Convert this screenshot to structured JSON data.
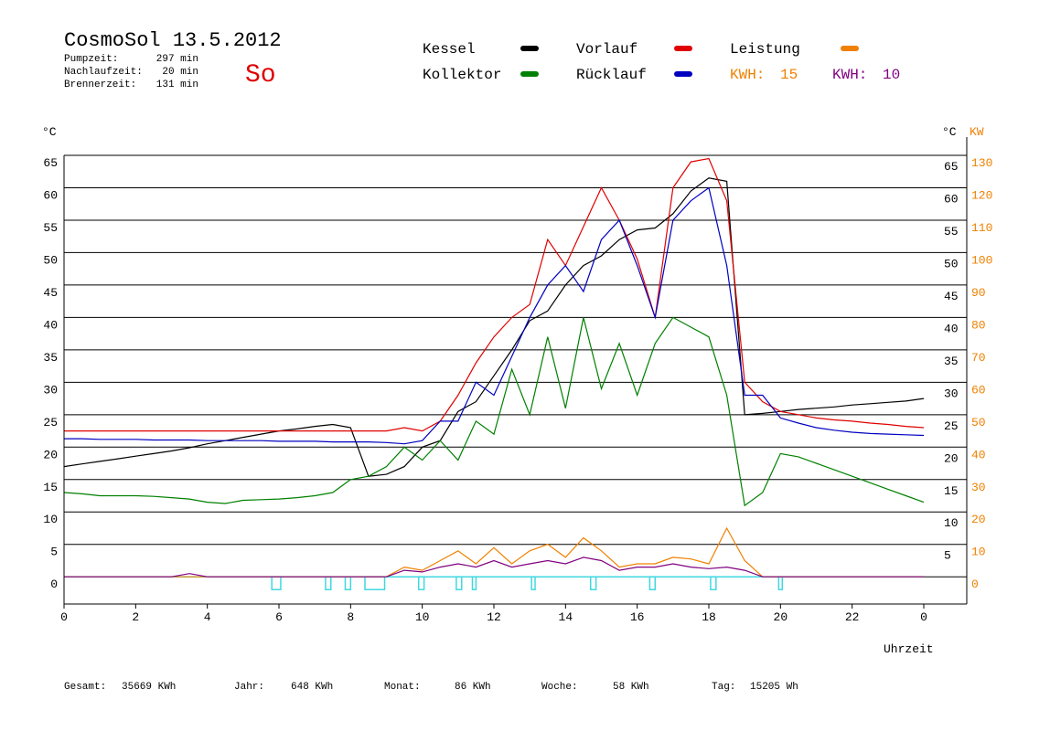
{
  "chart_data": {
    "type": "line",
    "title": "CosmoSol 13.5.2012",
    "day": "So",
    "stats": [
      {
        "label": "Pumpzeit:",
        "value": "297 min"
      },
      {
        "label": "Nachlaufzeit:",
        "value": "20 min"
      },
      {
        "label": "Brennerzeit:",
        "value": "131 min"
      }
    ],
    "kwh": [
      {
        "label": "KWH:",
        "value": 15,
        "color": "#f08000"
      },
      {
        "label": "KWH:",
        "value": 10,
        "color": "#800080"
      }
    ],
    "y_unit": "°C",
    "y_unit_right": "°C",
    "y2_unit": "KW",
    "x_label": "Uhrzeit",
    "xlim": [
      0,
      25.2
    ],
    "xticks": [
      0,
      2,
      4,
      6,
      8,
      10,
      12,
      14,
      16,
      18,
      20,
      22,
      {
        "value": 24,
        "label": "0"
      }
    ],
    "ylim": [
      -4.2,
      65
    ],
    "yticks": [
      0,
      5,
      10,
      15,
      20,
      25,
      30,
      35,
      40,
      45,
      50,
      55,
      60,
      65
    ],
    "yticks_right": [
      5,
      10,
      15,
      20,
      25,
      30,
      35,
      40,
      45,
      50,
      55,
      60,
      65
    ],
    "y2lim": [
      -8.4,
      130
    ],
    "y2ticks": [
      0,
      10,
      20,
      30,
      40,
      50,
      60,
      70,
      80,
      90,
      100,
      110,
      120,
      130
    ],
    "grid": true,
    "x": [
      0,
      0.5,
      1,
      1.5,
      2,
      2.5,
      3,
      3.5,
      4,
      4.5,
      5,
      5.5,
      6,
      6.5,
      7,
      7.5,
      8,
      8.5,
      9,
      9.5,
      10,
      10.5,
      11,
      11.5,
      12,
      12.5,
      13,
      13.5,
      14,
      14.5,
      15,
      15.5,
      16,
      16.5,
      17,
      17.5,
      18,
      18.5,
      19,
      19.5,
      20,
      20.5,
      21,
      21.5,
      22,
      22.5,
      23,
      23.5,
      24
    ],
    "series": [
      {
        "name": "Kessel",
        "color": "#000000",
        "values": [
          17,
          17.4,
          17.8,
          18.2,
          18.6,
          19,
          19.4,
          19.9,
          20.5,
          21,
          21.5,
          22,
          22.5,
          22.8,
          23.2,
          23.5,
          23,
          15.5,
          15.8,
          17,
          20,
          21,
          25.5,
          27,
          31,
          35,
          39.5,
          41,
          45,
          48,
          49.5,
          52,
          53.5,
          53.8,
          56,
          59.5,
          61.5,
          61,
          25,
          25.2,
          25.5,
          25.8,
          26,
          26.2,
          26.5,
          26.7,
          26.9,
          27.1,
          27.5
        ]
      },
      {
        "name": "Kollektor",
        "color": "#008000",
        "values": [
          13,
          12.8,
          12.5,
          12.5,
          12.5,
          12.4,
          12.2,
          12,
          11.5,
          11.3,
          11.8,
          11.9,
          12,
          12.2,
          12.5,
          13,
          15,
          15.5,
          17,
          20,
          18,
          21,
          18,
          24,
          22,
          32,
          25,
          37,
          26,
          40,
          29,
          36,
          28,
          36,
          40,
          38.5,
          37,
          28,
          11,
          13,
          19,
          18.5,
          17.5,
          16.5,
          15.5,
          14.5,
          13.5,
          12.5,
          11.5
        ]
      },
      {
        "name": "Vorlauf",
        "color": "#e00000",
        "values": [
          22.5,
          22.5,
          22.5,
          22.5,
          22.5,
          22.5,
          22.5,
          22.5,
          22.5,
          22.5,
          22.5,
          22.5,
          22.5,
          22.5,
          22.5,
          22.5,
          22.5,
          22.5,
          22.5,
          23,
          22.5,
          24,
          28,
          33,
          37,
          40,
          42,
          52,
          48,
          54,
          60,
          55,
          49,
          40,
          60,
          64,
          64.5,
          58,
          30,
          27,
          25.5,
          25,
          24.5,
          24.2,
          24,
          23.7,
          23.5,
          23.2,
          23
        ]
      },
      {
        "name": "Rücklauf",
        "color": "#0000c0",
        "values": [
          21.3,
          21.3,
          21.2,
          21.2,
          21.2,
          21.1,
          21.1,
          21.1,
          21,
          21,
          21,
          21,
          20.9,
          20.9,
          20.9,
          20.8,
          20.8,
          20.8,
          20.7,
          20.5,
          21,
          24,
          24,
          30,
          28,
          34,
          40,
          45,
          48,
          44,
          52,
          55,
          48,
          40,
          55,
          58,
          60,
          48,
          28,
          28,
          24.5,
          23.7,
          23,
          22.6,
          22.3,
          22.1,
          22,
          21.9,
          21.8
        ]
      },
      {
        "name": "Leistung",
        "color": "#f08000",
        "axis": "y2",
        "values": [
          0,
          0,
          0,
          0,
          0,
          0,
          0,
          0,
          0,
          0,
          0,
          0,
          0,
          0,
          0,
          0,
          0,
          0,
          0,
          3,
          2,
          5,
          8,
          4,
          9,
          4,
          8,
          10,
          6,
          12,
          8,
          3,
          4,
          4,
          6,
          5.5,
          4,
          15,
          5,
          0,
          0,
          0,
          0,
          0,
          0,
          0,
          0,
          0,
          0
        ]
      },
      {
        "color": "#800080",
        "axis": "y2",
        "values": [
          0,
          0,
          0,
          0,
          0,
          0,
          0,
          1,
          0,
          0,
          0,
          0,
          0,
          0,
          0,
          0,
          0,
          0,
          0,
          2,
          1.5,
          3,
          4,
          3,
          5,
          3,
          4,
          5,
          4,
          6,
          5,
          2,
          3,
          3,
          4,
          3,
          2.5,
          3,
          2,
          0,
          0,
          0,
          0,
          0,
          0,
          0,
          0,
          0,
          0
        ]
      }
    ],
    "pump_color": "#40d8e0",
    "pump_intervals": [
      [
        5.8,
        6.05
      ],
      [
        7.3,
        7.45
      ],
      [
        7.85,
        8.0
      ],
      [
        8.4,
        8.95
      ],
      [
        9.9,
        10.05
      ],
      [
        10.95,
        11.1
      ],
      [
        11.4,
        11.5
      ],
      [
        13.05,
        13.15
      ],
      [
        14.7,
        14.85
      ],
      [
        16.35,
        16.5
      ],
      [
        18.05,
        18.2
      ],
      [
        19.95,
        20.05
      ]
    ],
    "totals": [
      {
        "label": "Gesamt:",
        "value": "35669 KWh"
      },
      {
        "label": "Jahr:",
        "value": "648 KWh"
      },
      {
        "label": "Monat:",
        "value": "86 KWh"
      },
      {
        "label": "Woche:",
        "value": "58 KWh"
      },
      {
        "label": "Tag:",
        "value": "15205 Wh"
      }
    ]
  }
}
